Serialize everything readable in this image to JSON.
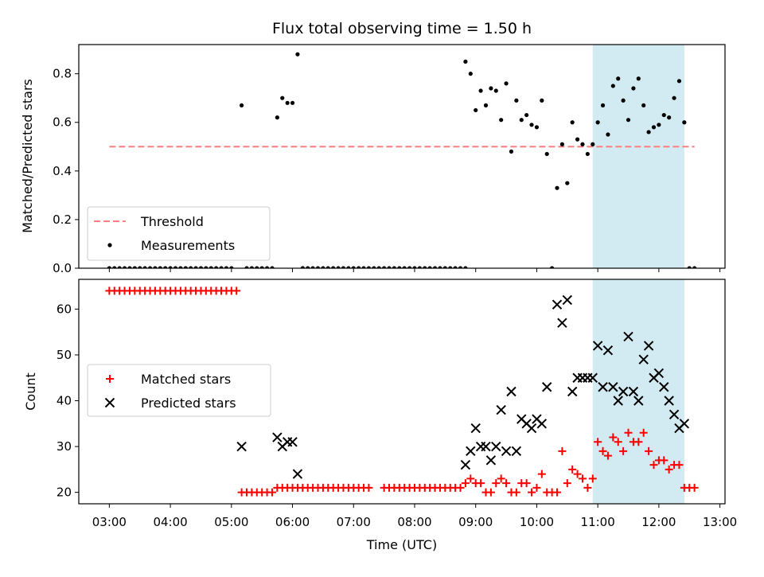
{
  "chart_data": [
    {
      "type": "scatter",
      "title": "Flux total observing time = 1.50 h",
      "ylabel": "Matched/Predicted stars",
      "xlabel": "",
      "ylim": [
        0,
        0.92
      ],
      "xlim": [
        "02:30",
        "13:05"
      ],
      "yticks": [
        "0.0",
        "0.2",
        "0.4",
        "0.6",
        "0.8"
      ],
      "legend_location": "lower-left",
      "shaded_span": {
        "start": "10:55",
        "end": "12:25",
        "color": "#add8e6"
      },
      "threshold": {
        "name": "Threshold",
        "value": 0.5,
        "x_start": "03:00",
        "x_end": "12:35",
        "color": "#ff7f7f"
      },
      "series": [
        {
          "name": "Measurements",
          "color": "#000000",
          "zero_runs": [
            [
              "03:00",
              "05:00"
            ],
            [
              "05:15",
              "05:40"
            ],
            [
              "06:10",
              "07:25"
            ],
            [
              "07:30",
              "08:50"
            ]
          ],
          "points": [
            [
              "05:10",
              0.67
            ],
            [
              "05:45",
              0.62
            ],
            [
              "05:50",
              0.7
            ],
            [
              "05:55",
              0.68
            ],
            [
              "06:00",
              0.68
            ],
            [
              "06:05",
              0.88
            ],
            [
              "08:50",
              0.85
            ],
            [
              "08:55",
              0.8
            ],
            [
              "09:00",
              0.65
            ],
            [
              "09:05",
              0.73
            ],
            [
              "09:10",
              0.67
            ],
            [
              "09:15",
              0.74
            ],
            [
              "09:20",
              0.73
            ],
            [
              "09:25",
              0.61
            ],
            [
              "09:30",
              0.76
            ],
            [
              "09:35",
              0.48
            ],
            [
              "09:40",
              0.69
            ],
            [
              "09:45",
              0.61
            ],
            [
              "09:50",
              0.63
            ],
            [
              "09:55",
              0.59
            ],
            [
              "10:00",
              0.58
            ],
            [
              "10:05",
              0.69
            ],
            [
              "10:10",
              0.47
            ],
            [
              "10:15",
              0.0
            ],
            [
              "10:20",
              0.33
            ],
            [
              "10:25",
              0.51
            ],
            [
              "10:30",
              0.35
            ],
            [
              "10:35",
              0.6
            ],
            [
              "10:40",
              0.53
            ],
            [
              "10:45",
              0.51
            ],
            [
              "10:50",
              0.47
            ],
            [
              "10:55",
              0.51
            ],
            [
              "11:00",
              0.6
            ],
            [
              "11:05",
              0.67
            ],
            [
              "11:10",
              0.55
            ],
            [
              "11:15",
              0.75
            ],
            [
              "11:20",
              0.78
            ],
            [
              "11:25",
              0.69
            ],
            [
              "11:30",
              0.61
            ],
            [
              "11:35",
              0.74
            ],
            [
              "11:40",
              0.78
            ],
            [
              "11:45",
              0.67
            ],
            [
              "11:50",
              0.56
            ],
            [
              "11:55",
              0.58
            ],
            [
              "12:00",
              0.59
            ],
            [
              "12:05",
              0.63
            ],
            [
              "12:10",
              0.62
            ],
            [
              "12:15",
              0.7
            ],
            [
              "12:20",
              0.77
            ],
            [
              "12:25",
              0.6
            ],
            [
              "12:30",
              0.0
            ],
            [
              "12:35",
              0.0
            ]
          ]
        }
      ]
    },
    {
      "type": "scatter",
      "title": "",
      "ylabel": "Count",
      "xlabel": "Time (UTC)",
      "ylim": [
        17.5,
        66.5
      ],
      "xlim": [
        "02:30",
        "13:05"
      ],
      "yticks": [
        "20",
        "30",
        "40",
        "50",
        "60"
      ],
      "xticks": [
        "03:00",
        "04:00",
        "05:00",
        "06:00",
        "07:00",
        "08:00",
        "09:00",
        "10:00",
        "11:00",
        "12:00",
        "13:00"
      ],
      "legend_location": "center-left",
      "shaded_span": {
        "start": "10:55",
        "end": "12:25",
        "color": "#add8e6"
      },
      "series": [
        {
          "name": "Matched stars",
          "marker": "plus",
          "color": "#ff0000",
          "runs": [
            {
              "start": "03:00",
              "end": "05:05",
              "value": 64
            },
            {
              "start": "05:10",
              "end": "05:40",
              "value": 20
            },
            {
              "start": "05:45",
              "end": "07:15",
              "value": 21
            },
            {
              "start": "07:30",
              "end": "08:45",
              "value": 21
            }
          ],
          "points": [
            [
              "08:50",
              22
            ],
            [
              "08:55",
              23
            ],
            [
              "09:00",
              22
            ],
            [
              "09:05",
              22
            ],
            [
              "09:10",
              20
            ],
            [
              "09:15",
              20
            ],
            [
              "09:20",
              22
            ],
            [
              "09:25",
              23
            ],
            [
              "09:30",
              22
            ],
            [
              "09:35",
              20
            ],
            [
              "09:40",
              20
            ],
            [
              "09:45",
              22
            ],
            [
              "09:50",
              22
            ],
            [
              "09:55",
              20
            ],
            [
              "10:00",
              21
            ],
            [
              "10:05",
              24
            ],
            [
              "10:10",
              20
            ],
            [
              "10:15",
              20
            ],
            [
              "10:20",
              20
            ],
            [
              "10:25",
              29
            ],
            [
              "10:30",
              22
            ],
            [
              "10:35",
              25
            ],
            [
              "10:40",
              24
            ],
            [
              "10:45",
              23
            ],
            [
              "10:50",
              21
            ],
            [
              "10:55",
              23
            ],
            [
              "11:00",
              31
            ],
            [
              "11:05",
              29
            ],
            [
              "11:10",
              28
            ],
            [
              "11:15",
              32
            ],
            [
              "11:20",
              31
            ],
            [
              "11:25",
              29
            ],
            [
              "11:30",
              33
            ],
            [
              "11:35",
              31
            ],
            [
              "11:40",
              31
            ],
            [
              "11:45",
              33
            ],
            [
              "11:50",
              29
            ],
            [
              "11:55",
              26
            ],
            [
              "12:00",
              27
            ],
            [
              "12:05",
              27
            ],
            [
              "12:10",
              25
            ],
            [
              "12:15",
              26
            ],
            [
              "12:20",
              26
            ],
            [
              "12:25",
              21
            ],
            [
              "12:30",
              21
            ],
            [
              "12:35",
              21
            ]
          ]
        },
        {
          "name": "Predicted stars",
          "marker": "x",
          "color": "#000000",
          "points": [
            [
              "05:10",
              30
            ],
            [
              "05:45",
              32
            ],
            [
              "05:50",
              30
            ],
            [
              "05:55",
              31
            ],
            [
              "06:00",
              31
            ],
            [
              "06:05",
              24
            ],
            [
              "08:50",
              26
            ],
            [
              "08:55",
              29
            ],
            [
              "09:00",
              34
            ],
            [
              "09:05",
              30
            ],
            [
              "09:10",
              30
            ],
            [
              "09:15",
              27
            ],
            [
              "09:20",
              30
            ],
            [
              "09:25",
              38
            ],
            [
              "09:30",
              29
            ],
            [
              "09:35",
              42
            ],
            [
              "09:40",
              29
            ],
            [
              "09:45",
              36
            ],
            [
              "09:50",
              35
            ],
            [
              "09:55",
              34
            ],
            [
              "10:00",
              36
            ],
            [
              "10:05",
              35
            ],
            [
              "10:10",
              43
            ],
            [
              "10:20",
              61
            ],
            [
              "10:25",
              57
            ],
            [
              "10:30",
              62
            ],
            [
              "10:35",
              42
            ],
            [
              "10:40",
              45
            ],
            [
              "10:45",
              45
            ],
            [
              "10:50",
              45
            ],
            [
              "10:55",
              45
            ],
            [
              "11:00",
              52
            ],
            [
              "11:05",
              43
            ],
            [
              "11:10",
              51
            ],
            [
              "11:15",
              43
            ],
            [
              "11:20",
              40
            ],
            [
              "11:25",
              42
            ],
            [
              "11:30",
              54
            ],
            [
              "11:35",
              42
            ],
            [
              "11:40",
              40
            ],
            [
              "11:45",
              49
            ],
            [
              "11:50",
              52
            ],
            [
              "11:55",
              45
            ],
            [
              "12:00",
              46
            ],
            [
              "12:05",
              43
            ],
            [
              "12:10",
              40
            ],
            [
              "12:15",
              37
            ],
            [
              "12:20",
              34
            ],
            [
              "12:25",
              35
            ]
          ]
        }
      ]
    }
  ]
}
